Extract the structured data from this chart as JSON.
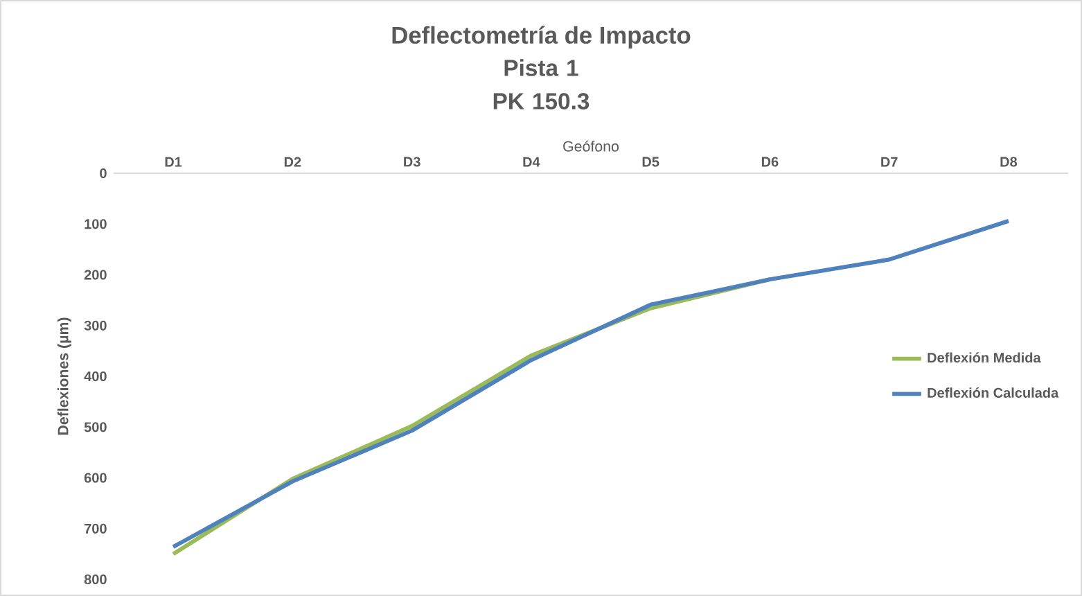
{
  "chart_data": {
    "type": "line",
    "title": "Deflectometría de Impacto",
    "subtitle": "Pista 1\nPK 150.3",
    "xlabel": "Geófono",
    "ylabel": "Deflexiones (µm)",
    "categories": [
      "D1",
      "D2",
      "D3",
      "D4",
      "D5",
      "D6",
      "D7",
      "D8"
    ],
    "series": [
      {
        "name": "Deflexión Medida",
        "color": "#9bbb59",
        "values": [
          750,
          602,
          498,
          359,
          266,
          209,
          null,
          null
        ]
      },
      {
        "name": "Deflexión Calculada",
        "color": "#4f81bd",
        "values": [
          736,
          607,
          507,
          368,
          259,
          209,
          170,
          94
        ]
      }
    ],
    "ylim": [
      800,
      0
    ],
    "yticks": [
      0,
      100,
      200,
      300,
      400,
      500,
      600,
      700,
      800
    ],
    "legend": "right",
    "marker": "none",
    "line_style": "solid",
    "grid": false
  }
}
